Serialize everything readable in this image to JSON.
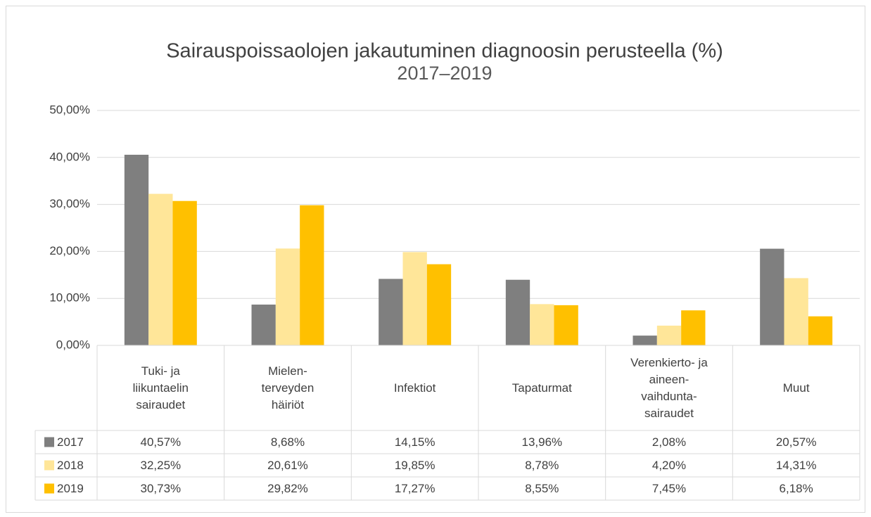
{
  "chart_data": {
    "type": "bar",
    "title": "Sairauspoissaolojen jakautuminen diagnoosin perusteella (%)",
    "subtitle": "2017–2019",
    "categories": [
      "Tuki- ja\nliikuntaelin\nsairaudet",
      "Mielen-\nterveyden\nhäiriöt",
      "Infektiot",
      "Tapaturmat",
      "Verenkierto- ja\naineen-\nvaihdunta-\nsairaudet",
      "Muut"
    ],
    "series": [
      {
        "name": "2017",
        "color": "#7f7f7f",
        "values": [
          40.57,
          8.68,
          14.15,
          13.96,
          2.08,
          20.57
        ],
        "value_labels": [
          "40,57%",
          "8,68%",
          "14,15%",
          "13,96%",
          "2,08%",
          "20,57%"
        ]
      },
      {
        "name": "2018",
        "color": "#ffe699",
        "values": [
          32.25,
          20.61,
          19.85,
          8.78,
          4.2,
          14.31
        ],
        "value_labels": [
          "32,25%",
          "20,61%",
          "19,85%",
          "8,78%",
          "4,20%",
          "14,31%"
        ]
      },
      {
        "name": "2019",
        "color": "#ffc000",
        "values": [
          30.73,
          29.82,
          17.27,
          8.55,
          7.45,
          6.18
        ],
        "value_labels": [
          "30,73%",
          "29,82%",
          "17,27%",
          "8,55%",
          "7,45%",
          "6,18%"
        ]
      }
    ],
    "ylim": [
      0,
      50
    ],
    "yticks": [
      {
        "value": 0,
        "label": "0,00%"
      },
      {
        "value": 10,
        "label": "10,00%"
      },
      {
        "value": 20,
        "label": "20,00%"
      },
      {
        "value": 30,
        "label": "30,00%"
      },
      {
        "value": 40,
        "label": "40,00%"
      },
      {
        "value": 50,
        "label": "50,00%"
      }
    ],
    "grid": true
  }
}
